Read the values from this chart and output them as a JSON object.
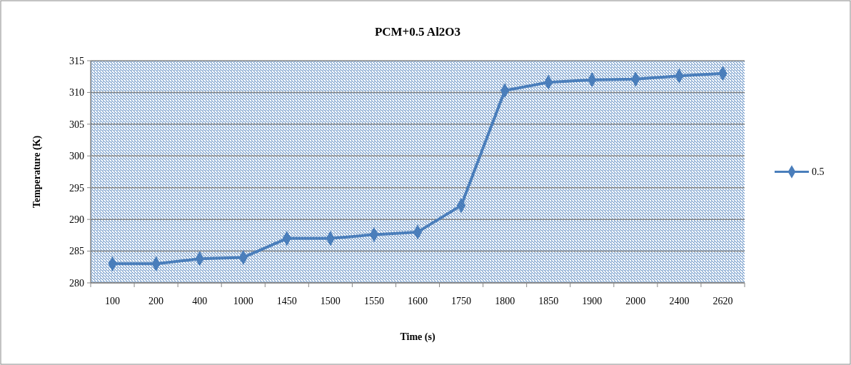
{
  "chart_data": {
    "type": "line",
    "title": "PCM+0.5 Al2O3",
    "xlabel": "Time (s)",
    "ylabel": "Temperature (K)",
    "categories": [
      "100",
      "200",
      "400",
      "1000",
      "1450",
      "1500",
      "1550",
      "1600",
      "1750",
      "1800",
      "1850",
      "1900",
      "2000",
      "2400",
      "2620"
    ],
    "series": [
      {
        "name": "0.5",
        "color": "#4a7ebb",
        "values": [
          283,
          283,
          283.8,
          284,
          287,
          287,
          287.6,
          288,
          292.2,
          310.3,
          311.6,
          312,
          312.1,
          312.6,
          313
        ]
      }
    ],
    "ylim": [
      280,
      315
    ],
    "yticks": [
      280,
      285,
      290,
      295,
      300,
      305,
      310,
      315
    ],
    "grid": "y",
    "legend": "right",
    "marker": "diamond",
    "line_style": "solid"
  }
}
